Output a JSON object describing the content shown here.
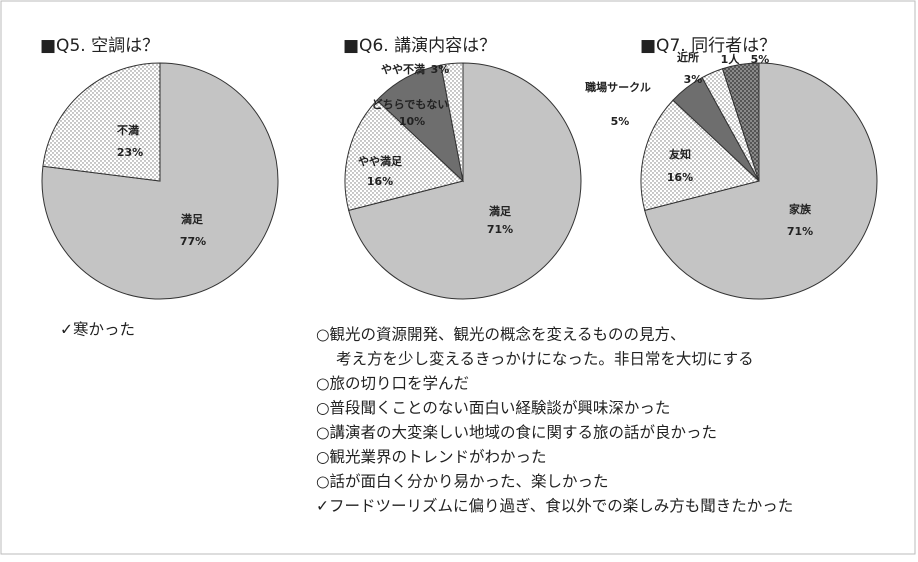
{
  "chart_data": [
    {
      "type": "pie",
      "title": "■Q5. 空調は？",
      "categories": [
        "満足",
        "不満"
      ],
      "values": [
        77,
        23
      ],
      "value_labels": [
        "77%",
        "23%"
      ],
      "colors": [
        "#c4c4c4",
        "#ffffff"
      ],
      "patterns": [
        null,
        "dots"
      ]
    },
    {
      "type": "pie",
      "title": "■Q6. 講演内容は？",
      "categories": [
        "満足",
        "やや満足",
        "どちらでもない",
        "やや不満"
      ],
      "values": [
        71,
        16,
        10,
        3
      ],
      "value_labels": [
        "71%",
        "16%",
        "10%",
        "3%"
      ],
      "colors": [
        "#c4c4c4",
        "#ffffff",
        "#6e6e6e",
        "#ffffff"
      ],
      "patterns": [
        null,
        "dots",
        null,
        "dots"
      ]
    },
    {
      "type": "pie",
      "title": "■Q7. 同行者は？",
      "categories": [
        "家族",
        "友知",
        "職場サークル",
        "近所",
        "1人"
      ],
      "values": [
        71,
        16,
        5,
        3,
        5
      ],
      "value_labels": [
        "71%",
        "16%",
        "5%",
        "3%",
        "5%"
      ],
      "colors": [
        "#c4c4c4",
        "#ffffff",
        "#6e6e6e",
        "#ffffff",
        "#8a8a8a"
      ],
      "patterns": [
        null,
        "dots",
        null,
        "dots",
        "checker"
      ]
    }
  ],
  "comments": {
    "q5": [
      "✓寒かった"
    ],
    "q6": [
      "○観光の資源開発、観光の概念を変えるものの見方、",
      "考え方を少し変えるきっかけになった。非日常を大切にする",
      "○旅の切り口を学んだ",
      "○普段聞くことのない面白い経験談が興味深かった",
      "○講演者の大変楽しい地域の食に関する旅の話が良かった",
      "○観光業界のトレンドがわかった",
      "○話が面白く分かり易かった、楽しかった",
      "✓フードツーリズムに偏り過ぎ、食以外での楽しみ方も聞きたかった"
    ]
  }
}
